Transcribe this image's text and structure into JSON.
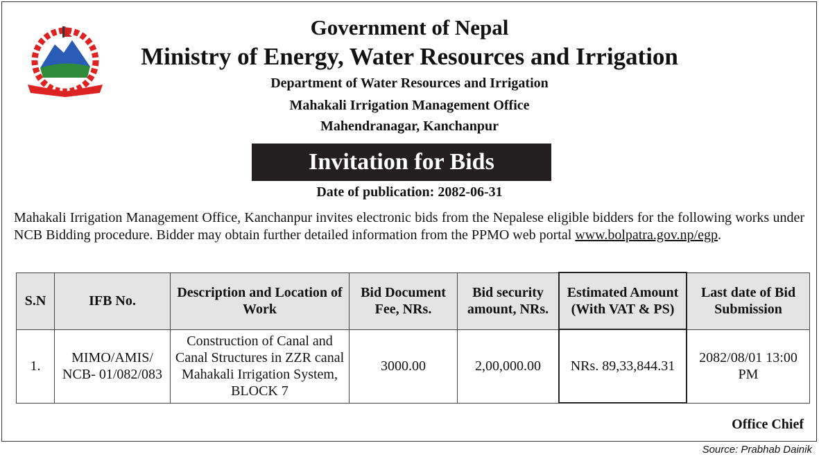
{
  "header": {
    "gov": "Government of Nepal",
    "ministry": "Ministry of Energy, Water Resources and Irrigation",
    "department": "Department of Water Resources and Irrigation",
    "office": "Mahakali Irrigation Management Office",
    "location": "Mahendranagar, Kanchanpur",
    "emblem_text": "Government of Nepal emblem"
  },
  "notice": {
    "title": "Invitation for Bids",
    "publication_date": "Date of publication: 2082-06-31",
    "body": "Mahakali Irrigation Management Office, Kanchanpur invites electronic bids from the Nepalese eligible bidders for the following works under NCB Bidding procedure. Bidder may obtain further detailed information from the PPMO web portal ",
    "link": "www.bolpatra.gov.np/egp",
    "end": "."
  },
  "table": {
    "headers": [
      "S.N",
      "IFB No.",
      "Description and Location of Work",
      "Bid Document Fee, NRs.",
      "Bid security amount, NRs.",
      "Estimated Amount (With VAT & PS)",
      "Last date of Bid Submission"
    ],
    "rows": [
      [
        "1.",
        "MIMO/AMIS/ NCB- 01/082/083",
        "Construction of Canal and Canal Structures in ZZR canal Mahakali Irrigation System, BLOCK 7",
        "3000.00",
        "2,00,000.00",
        "NRs. 89,33,844.31",
        "2082/08/01 13:00 PM"
      ]
    ]
  },
  "signature": "Office Chief",
  "source": "Source: Prabhab Dainik"
}
